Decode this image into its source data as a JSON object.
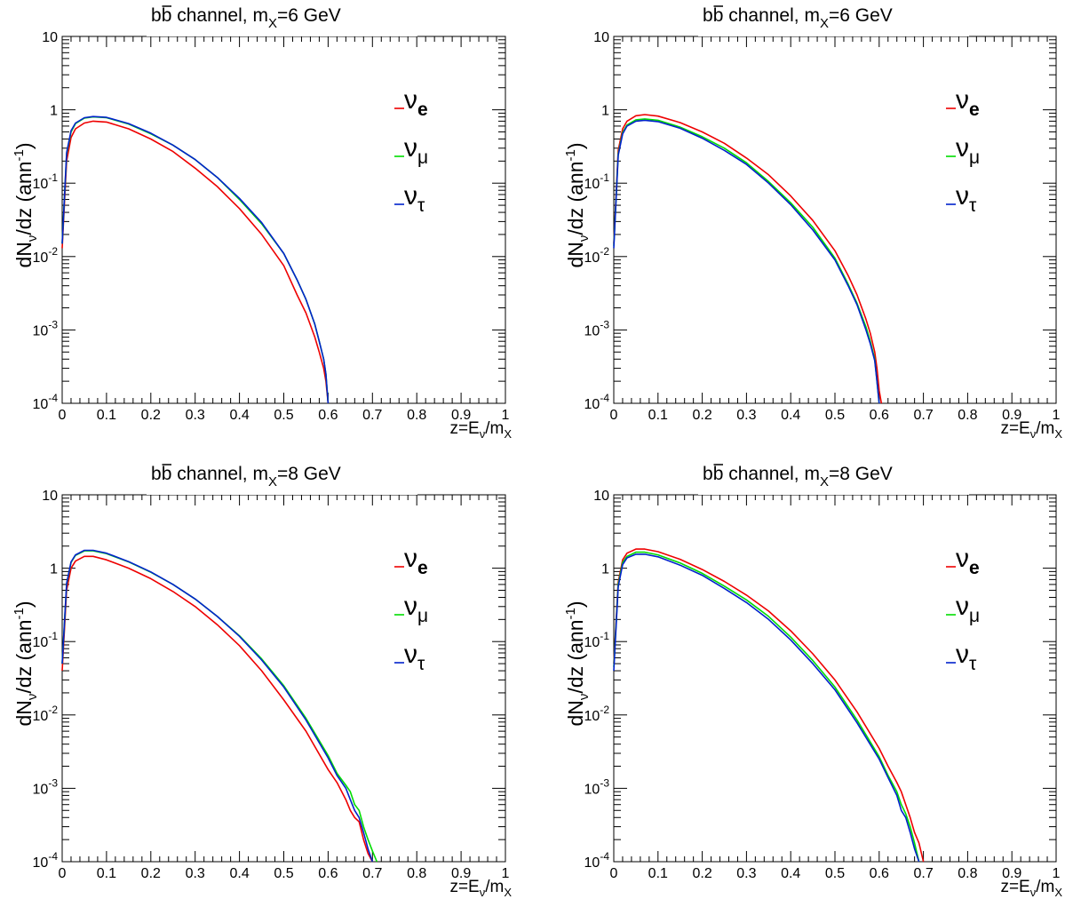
{
  "chart_data": [
    {
      "type": "line",
      "title": {
        "pre": "b",
        "bbar": "b",
        "mid": " channel, m",
        "sub": "X",
        "post": "=6 GeV"
      },
      "xlabel": {
        "pre": "z=E",
        "sub1": "ν",
        "mid": "/m",
        "sub2": "X"
      },
      "ylabel": {
        "pre": "dN",
        "sub": "ν",
        "mid": "/dz (ann",
        "sup": "-1",
        "post": ")"
      },
      "xlim": [
        0,
        1
      ],
      "ylim": [
        0.0001,
        10
      ],
      "yscale": "log",
      "xticks": [
        "0",
        "0.1",
        "0.2",
        "0.3",
        "0.4",
        "0.5",
        "0.6",
        "0.7",
        "0.8",
        "0.9",
        "1"
      ],
      "yticks": [
        {
          "base": "10",
          "exp": "-4"
        },
        {
          "base": "10",
          "exp": "-3"
        },
        {
          "base": "10",
          "exp": "-2"
        },
        {
          "base": "10",
          "exp": "-1"
        },
        {
          "base": "1",
          "exp": ""
        },
        {
          "base": "10",
          "exp": ""
        }
      ],
      "legend_position": "top-right",
      "legend": [
        {
          "sym": "ν",
          "sub": "e",
          "bold": true,
          "color": "#ee0000"
        },
        {
          "sym": "ν",
          "sub": "μ",
          "bold": false,
          "color": "#00dd00"
        },
        {
          "sym": "ν",
          "sub": "τ",
          "bold": false,
          "color": "#0022cc"
        }
      ],
      "series": [
        {
          "key": "nu_e",
          "color": "#ee0000",
          "x": [
            0.0,
            0.01,
            0.02,
            0.03,
            0.05,
            0.07,
            0.1,
            0.15,
            0.2,
            0.25,
            0.3,
            0.35,
            0.4,
            0.45,
            0.5,
            0.53,
            0.55,
            0.57,
            0.58,
            0.59,
            0.595,
            0.6
          ],
          "y": [
            0.013,
            0.2,
            0.42,
            0.55,
            0.66,
            0.7,
            0.68,
            0.55,
            0.4,
            0.27,
            0.16,
            0.09,
            0.045,
            0.02,
            0.0075,
            0.003,
            0.0017,
            0.0008,
            0.0005,
            0.0003,
            0.0002,
            0.0001
          ]
        },
        {
          "key": "nu_mu",
          "color": "#00dd00",
          "x": [
            0.0,
            0.01,
            0.02,
            0.03,
            0.05,
            0.07,
            0.1,
            0.15,
            0.2,
            0.25,
            0.3,
            0.35,
            0.4,
            0.45,
            0.5,
            0.53,
            0.55,
            0.57,
            0.58,
            0.59,
            0.595,
            0.6
          ],
          "y": [
            0.015,
            0.25,
            0.5,
            0.65,
            0.77,
            0.8,
            0.78,
            0.64,
            0.47,
            0.33,
            0.21,
            0.12,
            0.06,
            0.028,
            0.011,
            0.0048,
            0.0026,
            0.0012,
            0.0007,
            0.0004,
            0.00025,
            0.0001
          ]
        },
        {
          "key": "nu_tau",
          "color": "#0022cc",
          "x": [
            0.0,
            0.01,
            0.02,
            0.03,
            0.05,
            0.07,
            0.1,
            0.15,
            0.2,
            0.25,
            0.3,
            0.35,
            0.4,
            0.45,
            0.5,
            0.53,
            0.55,
            0.57,
            0.58,
            0.59,
            0.595,
            0.6
          ],
          "y": [
            0.015,
            0.26,
            0.52,
            0.66,
            0.78,
            0.81,
            0.79,
            0.65,
            0.48,
            0.33,
            0.21,
            0.12,
            0.062,
            0.029,
            0.011,
            0.0048,
            0.0026,
            0.0012,
            0.0007,
            0.0004,
            0.00025,
            0.0001
          ]
        }
      ]
    },
    {
      "type": "line",
      "title": {
        "pre": "b",
        "bbar": "b",
        "mid": " channel, m",
        "sub": "X",
        "post": "=6 GeV"
      },
      "xlabel": {
        "pre": "z=E",
        "sub1": "ν",
        "mid": "/m",
        "sub2": "X"
      },
      "ylabel": {
        "pre": "dN",
        "sub": "ν",
        "mid": "/dz (ann",
        "sup": "-1",
        "post": ")"
      },
      "xlim": [
        0,
        1
      ],
      "ylim": [
        0.0001,
        10
      ],
      "yscale": "log",
      "xticks": [
        "0",
        "0.1",
        "0.2",
        "0.3",
        "0.4",
        "0.5",
        "0.6",
        "0.7",
        "0.8",
        "0.9",
        "1"
      ],
      "yticks": [
        {
          "base": "10",
          "exp": "-4"
        },
        {
          "base": "10",
          "exp": "-3"
        },
        {
          "base": "10",
          "exp": "-2"
        },
        {
          "base": "10",
          "exp": "-1"
        },
        {
          "base": "1",
          "exp": ""
        },
        {
          "base": "10",
          "exp": ""
        }
      ],
      "legend_position": "top-right",
      "legend": [
        {
          "sym": "ν",
          "sub": "e",
          "bold": true,
          "color": "#ee0000"
        },
        {
          "sym": "ν",
          "sub": "μ",
          "bold": false,
          "color": "#00dd00"
        },
        {
          "sym": "ν",
          "sub": "τ",
          "bold": false,
          "color": "#0022cc"
        }
      ],
      "series": [
        {
          "key": "nu_e",
          "color": "#ee0000",
          "x": [
            0.0,
            0.01,
            0.02,
            0.03,
            0.05,
            0.07,
            0.1,
            0.15,
            0.2,
            0.25,
            0.3,
            0.35,
            0.4,
            0.45,
            0.5,
            0.53,
            0.55,
            0.57,
            0.58,
            0.59,
            0.595,
            0.6,
            0.605
          ],
          "y": [
            0.015,
            0.28,
            0.55,
            0.7,
            0.83,
            0.86,
            0.82,
            0.67,
            0.5,
            0.35,
            0.22,
            0.13,
            0.067,
            0.031,
            0.012,
            0.0055,
            0.003,
            0.0014,
            0.0009,
            0.0005,
            0.0003,
            0.00015,
            0.0001
          ]
        },
        {
          "key": "nu_mu",
          "color": "#00dd00",
          "x": [
            0.0,
            0.01,
            0.02,
            0.03,
            0.05,
            0.07,
            0.1,
            0.15,
            0.2,
            0.25,
            0.3,
            0.35,
            0.4,
            0.45,
            0.5,
            0.53,
            0.55,
            0.57,
            0.58,
            0.59,
            0.595,
            0.6
          ],
          "y": [
            0.014,
            0.25,
            0.49,
            0.62,
            0.73,
            0.75,
            0.72,
            0.58,
            0.43,
            0.3,
            0.19,
            0.105,
            0.054,
            0.025,
            0.0095,
            0.0042,
            0.0023,
            0.0011,
            0.0007,
            0.0004,
            0.0002,
            0.0001
          ]
        },
        {
          "key": "nu_tau",
          "color": "#0022cc",
          "x": [
            0.0,
            0.01,
            0.02,
            0.03,
            0.05,
            0.07,
            0.1,
            0.15,
            0.2,
            0.25,
            0.3,
            0.35,
            0.4,
            0.45,
            0.5,
            0.53,
            0.55,
            0.57,
            0.58,
            0.59,
            0.595,
            0.6
          ],
          "y": [
            0.013,
            0.24,
            0.47,
            0.6,
            0.7,
            0.72,
            0.69,
            0.56,
            0.41,
            0.28,
            0.18,
            0.1,
            0.051,
            0.023,
            0.009,
            0.004,
            0.0022,
            0.001,
            0.00065,
            0.00038,
            0.0002,
            0.0001
          ]
        }
      ]
    },
    {
      "type": "line",
      "title": {
        "pre": "b",
        "bbar": "b",
        "mid": " channel, m",
        "sub": "X",
        "post": "=8 GeV"
      },
      "xlabel": {
        "pre": "z=E",
        "sub1": "ν",
        "mid": "/m",
        "sub2": "X"
      },
      "ylabel": {
        "pre": "dN",
        "sub": "ν",
        "mid": "/dz (ann",
        "sup": "-1",
        "post": ")"
      },
      "xlim": [
        0,
        1
      ],
      "ylim": [
        0.0001,
        10
      ],
      "yscale": "log",
      "xticks": [
        "0",
        "0.1",
        "0.2",
        "0.3",
        "0.4",
        "0.5",
        "0.6",
        "0.7",
        "0.8",
        "0.9",
        "1"
      ],
      "yticks": [
        {
          "base": "10",
          "exp": "-4"
        },
        {
          "base": "10",
          "exp": "-3"
        },
        {
          "base": "10",
          "exp": "-2"
        },
        {
          "base": "10",
          "exp": "-1"
        },
        {
          "base": "1",
          "exp": ""
        },
        {
          "base": "10",
          "exp": ""
        }
      ],
      "legend_position": "top-right",
      "legend": [
        {
          "sym": "ν",
          "sub": "e",
          "bold": true,
          "color": "#ee0000"
        },
        {
          "sym": "ν",
          "sub": "μ",
          "bold": false,
          "color": "#00dd00"
        },
        {
          "sym": "ν",
          "sub": "τ",
          "bold": false,
          "color": "#0022cc"
        }
      ],
      "series": [
        {
          "key": "nu_e",
          "color": "#ee0000",
          "x": [
            0.0,
            0.01,
            0.02,
            0.03,
            0.05,
            0.07,
            0.1,
            0.15,
            0.2,
            0.25,
            0.3,
            0.35,
            0.4,
            0.45,
            0.5,
            0.55,
            0.6,
            0.62,
            0.64,
            0.65,
            0.66,
            0.67,
            0.68,
            0.69,
            0.7
          ],
          "y": [
            0.04,
            0.5,
            1.0,
            1.25,
            1.45,
            1.45,
            1.3,
            1.0,
            0.72,
            0.48,
            0.3,
            0.17,
            0.088,
            0.04,
            0.016,
            0.006,
            0.0018,
            0.0012,
            0.0007,
            0.0005,
            0.0004,
            0.00035,
            0.0002,
            0.00013,
            0.0001
          ]
        },
        {
          "key": "nu_mu",
          "color": "#00dd00",
          "x": [
            0.0,
            0.01,
            0.02,
            0.03,
            0.05,
            0.07,
            0.1,
            0.15,
            0.2,
            0.25,
            0.3,
            0.35,
            0.4,
            0.45,
            0.5,
            0.55,
            0.6,
            0.62,
            0.64,
            0.65,
            0.66,
            0.67,
            0.68,
            0.69,
            0.7,
            0.71
          ],
          "y": [
            0.05,
            0.6,
            1.2,
            1.5,
            1.72,
            1.72,
            1.58,
            1.22,
            0.88,
            0.6,
            0.38,
            0.22,
            0.12,
            0.058,
            0.025,
            0.009,
            0.0028,
            0.0016,
            0.0011,
            0.0009,
            0.0006,
            0.0005,
            0.0003,
            0.0002,
            0.00014,
            0.0001
          ]
        },
        {
          "key": "nu_tau",
          "color": "#0022cc",
          "x": [
            0.0,
            0.01,
            0.02,
            0.03,
            0.05,
            0.07,
            0.1,
            0.15,
            0.2,
            0.25,
            0.3,
            0.35,
            0.4,
            0.45,
            0.5,
            0.55,
            0.6,
            0.62,
            0.64,
            0.65,
            0.66,
            0.67,
            0.68,
            0.69,
            0.7
          ],
          "y": [
            0.05,
            0.62,
            1.22,
            1.52,
            1.75,
            1.75,
            1.6,
            1.23,
            0.89,
            0.6,
            0.38,
            0.22,
            0.118,
            0.056,
            0.024,
            0.0085,
            0.0026,
            0.0015,
            0.001,
            0.0007,
            0.0005,
            0.0004,
            0.00025,
            0.00015,
            0.0001
          ]
        }
      ]
    },
    {
      "type": "line",
      "title": {
        "pre": "b",
        "bbar": "b",
        "mid": " channel, m",
        "sub": "X",
        "post": "=8 GeV"
      },
      "xlabel": {
        "pre": "z=E",
        "sub1": "ν",
        "mid": "/m",
        "sub2": "X"
      },
      "ylabel": {
        "pre": "dN",
        "sub": "ν",
        "mid": "/dz (ann",
        "sup": "-1",
        "post": ")"
      },
      "xlim": [
        0,
        1
      ],
      "ylim": [
        0.0001,
        10
      ],
      "yscale": "log",
      "xticks": [
        "0",
        "0.1",
        "0.2",
        "0.3",
        "0.4",
        "0.5",
        "0.6",
        "0.7",
        "0.8",
        "0.9",
        "1"
      ],
      "yticks": [
        {
          "base": "10",
          "exp": "-4"
        },
        {
          "base": "10",
          "exp": "-3"
        },
        {
          "base": "10",
          "exp": "-2"
        },
        {
          "base": "10",
          "exp": "-1"
        },
        {
          "base": "1",
          "exp": ""
        },
        {
          "base": "10",
          "exp": ""
        }
      ],
      "legend_position": "top-right",
      "legend": [
        {
          "sym": "ν",
          "sub": "e",
          "bold": true,
          "color": "#ee0000"
        },
        {
          "sym": "ν",
          "sub": "μ",
          "bold": false,
          "color": "#00dd00"
        },
        {
          "sym": "ν",
          "sub": "τ",
          "bold": false,
          "color": "#0022cc"
        }
      ],
      "series": [
        {
          "key": "nu_e",
          "color": "#ee0000",
          "x": [
            0.0,
            0.01,
            0.02,
            0.03,
            0.05,
            0.07,
            0.1,
            0.15,
            0.2,
            0.25,
            0.3,
            0.35,
            0.4,
            0.45,
            0.5,
            0.55,
            0.6,
            0.62,
            0.64,
            0.65,
            0.66,
            0.67,
            0.68,
            0.69,
            0.7
          ],
          "y": [
            0.05,
            0.65,
            1.3,
            1.6,
            1.82,
            1.82,
            1.68,
            1.32,
            0.96,
            0.66,
            0.43,
            0.26,
            0.14,
            0.068,
            0.03,
            0.011,
            0.0035,
            0.002,
            0.0012,
            0.0009,
            0.0006,
            0.0004,
            0.00025,
            0.00018,
            0.0001
          ]
        },
        {
          "key": "nu_mu",
          "color": "#00dd00",
          "x": [
            0.0,
            0.01,
            0.02,
            0.03,
            0.05,
            0.07,
            0.1,
            0.15,
            0.2,
            0.25,
            0.3,
            0.35,
            0.4,
            0.45,
            0.5,
            0.55,
            0.6,
            0.62,
            0.64,
            0.65,
            0.66,
            0.67,
            0.68,
            0.69
          ],
          "y": [
            0.045,
            0.6,
            1.2,
            1.45,
            1.65,
            1.65,
            1.52,
            1.18,
            0.85,
            0.57,
            0.37,
            0.22,
            0.115,
            0.055,
            0.024,
            0.0085,
            0.0027,
            0.0015,
            0.0009,
            0.0006,
            0.00045,
            0.0003,
            0.00018,
            0.0001
          ]
        },
        {
          "key": "nu_tau",
          "color": "#0022cc",
          "x": [
            0.0,
            0.01,
            0.02,
            0.03,
            0.05,
            0.07,
            0.1,
            0.15,
            0.2,
            0.25,
            0.3,
            0.35,
            0.4,
            0.45,
            0.5,
            0.55,
            0.6,
            0.62,
            0.64,
            0.65,
            0.66,
            0.67,
            0.68,
            0.69
          ],
          "y": [
            0.04,
            0.56,
            1.12,
            1.38,
            1.55,
            1.55,
            1.43,
            1.1,
            0.8,
            0.53,
            0.34,
            0.2,
            0.105,
            0.05,
            0.022,
            0.0078,
            0.0025,
            0.0014,
            0.0008,
            0.0005,
            0.0004,
            0.00025,
            0.00015,
            0.0001
          ]
        }
      ]
    }
  ]
}
